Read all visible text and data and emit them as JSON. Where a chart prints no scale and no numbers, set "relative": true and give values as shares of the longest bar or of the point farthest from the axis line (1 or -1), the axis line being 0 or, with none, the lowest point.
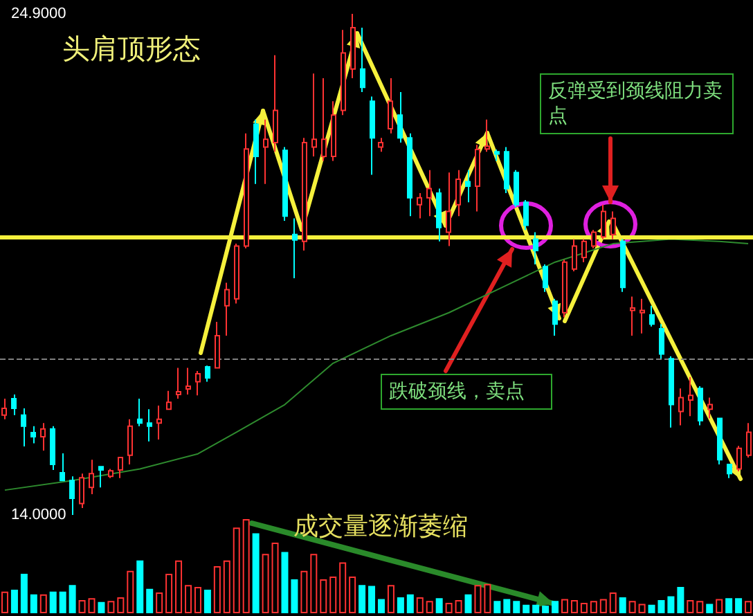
{
  "chart_data": [
    {
      "type": "candlestick",
      "title": "头肩顶形态",
      "categories": [
        null,
        null,
        null,
        null,
        null,
        null,
        null,
        null,
        null,
        null,
        null,
        null,
        null,
        null,
        null,
        null,
        null,
        null,
        null,
        null,
        null,
        null,
        null,
        null,
        null,
        null,
        null,
        null,
        null,
        null,
        null,
        null,
        null,
        null,
        null,
        null,
        null,
        null,
        null,
        null,
        null,
        null,
        null,
        null,
        null,
        null,
        null,
        null,
        null,
        null,
        null,
        null,
        null,
        null,
        null,
        null,
        null,
        null,
        null,
        null,
        null,
        null,
        null,
        null,
        null,
        null,
        null,
        null,
        null,
        null,
        null,
        null,
        null,
        null,
        null,
        null,
        null,
        null
      ],
      "ohlc": [
        [
          16.17,
          16.53,
          16.08,
          16.32
        ],
        [
          16.53,
          16.62,
          16.17,
          16.32
        ],
        [
          16.17,
          16.32,
          15.49,
          15.93
        ],
        [
          15.79,
          15.93,
          15.56,
          15.7
        ],
        [
          15.7,
          16.0,
          15.4,
          15.87
        ],
        [
          15.87,
          15.93,
          14.98,
          15.1
        ],
        [
          14.92,
          15.34,
          14.75,
          14.75
        ],
        [
          14.75,
          14.84,
          14.0,
          14.36
        ],
        [
          14.25,
          14.9,
          14.15,
          14.81
        ],
        [
          14.6,
          15.2,
          14.45,
          14.9
        ],
        [
          15.05,
          15.05,
          14.6,
          14.98
        ],
        [
          14.84,
          15.0,
          14.8,
          14.96
        ],
        [
          14.98,
          15.25,
          14.8,
          15.25
        ],
        [
          15.3,
          16.08,
          15.1,
          15.93
        ],
        [
          16.08,
          16.53,
          15.93,
          16.0
        ],
        [
          16.0,
          16.3,
          15.6,
          15.93
        ],
        [
          16.0,
          16.38,
          15.64,
          16.08
        ],
        [
          16.3,
          16.7,
          16.3,
          16.45
        ],
        [
          16.62,
          17.2,
          16.53,
          16.68
        ],
        [
          16.74,
          17.2,
          16.62,
          16.8
        ],
        [
          16.9,
          17.13,
          16.6,
          17.07
        ],
        [
          17.22,
          17.25,
          16.9,
          16.98
        ],
        [
          17.2,
          18.2,
          17.2,
          17.9
        ],
        [
          18.55,
          19.05,
          17.9,
          18.9
        ],
        [
          18.7,
          19.9,
          18.6,
          19.85
        ],
        [
          19.85,
          22.3,
          19.8,
          21.96
        ],
        [
          22.5,
          22.6,
          21.2,
          21.8
        ],
        [
          22.0,
          22.6,
          21.2,
          22.17
        ],
        [
          22.1,
          24.0,
          21.9,
          22.8
        ],
        [
          21.93,
          22.0,
          20.4,
          20.5
        ],
        [
          20.1,
          20.45,
          19.15,
          19.98
        ],
        [
          19.95,
          22.2,
          19.75,
          22.1
        ],
        [
          22.0,
          23.6,
          21.8,
          22.17
        ],
        [
          21.8,
          23.5,
          21.7,
          22.17
        ],
        [
          21.8,
          23.0,
          21.7,
          22.7
        ],
        [
          22.8,
          24.55,
          22.7,
          24.05
        ],
        [
          23.7,
          24.9,
          23.5,
          24.6
        ],
        [
          23.7,
          24.6,
          23.2,
          23.3
        ],
        [
          23.0,
          23.1,
          21.4,
          22.2
        ],
        [
          22.0,
          22.2,
          21.9,
          22.1
        ],
        [
          22.4,
          23.5,
          22.3,
          23.0
        ],
        [
          22.7,
          23.2,
          22.1,
          22.2
        ],
        [
          22.2,
          22.3,
          20.5,
          20.9
        ],
        [
          20.75,
          21.0,
          20.45,
          20.9
        ],
        [
          20.9,
          21.5,
          20.5,
          21.1
        ],
        [
          21.0,
          21.1,
          19.95,
          20.25
        ],
        [
          20.15,
          21.45,
          19.85,
          20.6
        ],
        [
          20.75,
          21.5,
          20.5,
          21.3
        ],
        [
          21.25,
          21.5,
          20.8,
          21.15
        ],
        [
          21.15,
          22.05,
          20.6,
          21.95
        ],
        [
          21.96,
          22.6,
          21.9,
          22.02
        ],
        [
          21.9,
          21.95,
          21.7,
          21.85
        ],
        [
          21.9,
          22.0,
          21.0,
          21.1
        ],
        [
          21.45,
          21.5,
          20.7,
          20.75
        ],
        [
          20.8,
          20.85,
          20.2,
          20.3
        ],
        [
          20.0,
          20.15,
          19.45,
          19.75
        ],
        [
          19.4,
          19.45,
          18.85,
          18.95
        ],
        [
          18.65,
          18.7,
          17.9,
          18.15
        ],
        [
          18.4,
          19.55,
          18.3,
          19.5
        ],
        [
          19.35,
          20.0,
          19.3,
          19.85
        ],
        [
          19.6,
          20.0,
          19.5,
          19.95
        ],
        [
          19.85,
          20.2,
          19.8,
          20.15
        ],
        [
          20.05,
          20.75,
          20.0,
          20.6
        ],
        [
          20.1,
          20.6,
          20.0,
          20.45
        ],
        [
          19.95,
          20.0,
          18.85,
          18.95
        ],
        [
          18.45,
          18.75,
          17.9,
          18.5
        ],
        [
          18.4,
          18.7,
          17.95,
          18.45
        ],
        [
          18.35,
          18.55,
          18.1,
          18.15
        ],
        [
          18.05,
          18.15,
          17.4,
          17.5
        ],
        [
          17.4,
          17.45,
          15.9,
          16.4
        ],
        [
          16.25,
          16.75,
          15.95,
          16.55
        ],
        [
          16.5,
          17.0,
          16.15,
          16.6
        ],
        [
          16.75,
          16.8,
          15.95,
          16.05
        ],
        [
          16.3,
          16.55,
          16.1,
          16.4
        ],
        [
          16.1,
          16.1,
          15.1,
          15.2
        ],
        [
          15.1,
          15.1,
          14.8,
          14.9
        ],
        [
          15.0,
          15.5,
          14.95,
          15.45
        ],
        [
          15.3,
          16.0,
          15.25,
          15.8
        ]
      ],
      "colors": [
        "#ff3232",
        "#00ffff",
        "#00ffff",
        "#00ffff",
        "#ff3232",
        "#00ffff",
        "#00ffff",
        "#00ffff",
        "#ff3232",
        "#ff3232",
        "#00ffff",
        "#ff3232",
        "#ff3232",
        "#ff3232",
        "#00ffff",
        "#00ffff",
        "#ff3232",
        "#ff3232",
        "#ff3232",
        "#ff3232",
        "#ff3232",
        "#00ffff",
        "#ff3232",
        "#ff3232",
        "#ff3232",
        "#ff3232",
        "#00ffff",
        "#ff3232",
        "#ff3232",
        "#00ffff",
        "#00ffff",
        "#ff3232",
        "#ff3232",
        "#ff3232",
        "#ff3232",
        "#ff3232",
        "#ff3232",
        "#00ffff",
        "#00ffff",
        "#ff3232",
        "#ff3232",
        "#00ffff",
        "#00ffff",
        "#ff3232",
        "#ff3232",
        "#00ffff",
        "#ff3232",
        "#ff3232",
        "#00ffff",
        "#ff3232",
        "#ff3232",
        "#00ffff",
        "#00ffff",
        "#00ffff",
        "#00ffff",
        "#00ffff",
        "#00ffff",
        "#00ffff",
        "#ff3232",
        "#ff3232",
        "#ff3232",
        "#ff3232",
        "#ff3232",
        "#ff3232",
        "#00ffff",
        "#ff3232",
        "#ff3232",
        "#00ffff",
        "#00ffff",
        "#00ffff",
        "#ff3232",
        "#ff3232",
        "#00ffff",
        "#ff3232",
        "#00ffff",
        "#00ffff",
        "#ff3232",
        "#ff3232"
      ],
      "series": [
        {
          "type": "line",
          "color": "#2e8b2e",
          "values": [
            14.54,
            null,
            null,
            null,
            null,
            null,
            null,
            14.75,
            null,
            null,
            null,
            null,
            null,
            null,
            15.0,
            null,
            null,
            null,
            null,
            null,
            15.33,
            null,
            null,
            null,
            15.8,
            null,
            null,
            null,
            null,
            16.4,
            null,
            null,
            null,
            null,
            17.3,
            null,
            null,
            null,
            null,
            null,
            17.9,
            null,
            null,
            null,
            null,
            null,
            18.4,
            null,
            null,
            null,
            null,
            18.9,
            null,
            null,
            null,
            null,
            null,
            19.5,
            null,
            null,
            null,
            null,
            null,
            19.9,
            null,
            null,
            null,
            null,
            null,
            20.0,
            null,
            null,
            null,
            null,
            19.95,
            null,
            null,
            19.9
          ]
        }
      ],
      "ylim": [
        14.0,
        24.9
      ],
      "yticks": [
        {
          "value": 14.0,
          "label": "14.0000"
        },
        {
          "value": 24.9,
          "label": "24.9000"
        }
      ],
      "ref_lines": [
        {
          "axis": "y",
          "value": 17.4,
          "color": "#808080",
          "line_style": "dashed"
        },
        {
          "axis": "y",
          "value": 20.05,
          "color": "#f5f03c",
          "line_style": "solid"
        }
      ],
      "annotations": [
        "反弹受到颈线阻力卖点",
        "跌破颈线，卖点"
      ]
    },
    {
      "type": "bar",
      "relative": true,
      "categories": [
        null,
        null,
        null,
        null,
        null,
        null,
        null,
        null,
        null,
        null,
        null,
        null,
        null,
        null,
        null,
        null,
        null,
        null,
        null,
        null,
        null,
        null,
        null,
        null,
        null,
        null,
        null,
        null,
        null,
        null,
        null,
        null,
        null,
        null,
        null,
        null,
        null,
        null,
        null,
        null,
        null,
        null,
        null,
        null,
        null,
        null,
        null,
        null,
        null,
        null,
        null,
        null,
        null,
        null,
        null,
        null,
        null,
        null,
        null,
        null,
        null,
        null,
        null,
        null,
        null,
        null,
        null,
        null,
        null,
        null,
        null,
        null,
        null,
        null,
        null,
        null,
        null,
        null
      ],
      "values": [
        0.23,
        0.25,
        0.42,
        0.2,
        0.2,
        0.23,
        0.23,
        0.3,
        0.14,
        0.16,
        0.12,
        0.13,
        0.17,
        0.45,
        0.56,
        0.26,
        0.22,
        0.42,
        0.56,
        0.3,
        0.28,
        0.25,
        0.5,
        0.56,
        0.91,
        1.0,
        0.85,
        0.63,
        0.75,
        0.65,
        0.36,
        0.45,
        0.63,
        0.36,
        0.39,
        0.54,
        0.39,
        0.3,
        0.29,
        0.15,
        0.3,
        0.17,
        0.2,
        0.17,
        0.13,
        0.16,
        0.11,
        0.14,
        0.2,
        0.3,
        0.31,
        0.13,
        0.15,
        0.13,
        0.09,
        0.09,
        0.08,
        0.13,
        0.15,
        0.14,
        0.11,
        0.13,
        0.15,
        0.22,
        0.17,
        0.13,
        0.1,
        0.09,
        0.14,
        0.18,
        0.28,
        0.14,
        0.13,
        0.1,
        0.15,
        0.16,
        0.16,
        0.13
      ],
      "colors": [
        "#ff3232",
        "#00ffff",
        "#00ffff",
        "#00ffff",
        "#ff3232",
        "#00ffff",
        "#00ffff",
        "#00ffff",
        "#ff3232",
        "#ff3232",
        "#00ffff",
        "#ff3232",
        "#ff3232",
        "#ff3232",
        "#00ffff",
        "#00ffff",
        "#ff3232",
        "#ff3232",
        "#ff3232",
        "#ff3232",
        "#ff3232",
        "#00ffff",
        "#ff3232",
        "#ff3232",
        "#ff3232",
        "#ff3232",
        "#00ffff",
        "#ff3232",
        "#ff3232",
        "#00ffff",
        "#00ffff",
        "#ff3232",
        "#ff3232",
        "#ff3232",
        "#ff3232",
        "#ff3232",
        "#ff3232",
        "#00ffff",
        "#00ffff",
        "#00ffff",
        "#ff3232",
        "#00ffff",
        "#00ffff",
        "#ff3232",
        "#ff3232",
        "#00ffff",
        "#ff3232",
        "#ff3232",
        "#00ffff",
        "#ff3232",
        "#ff3232",
        "#00ffff",
        "#00ffff",
        "#00ffff",
        "#00ffff",
        "#00ffff",
        "#00ffff",
        "#00ffff",
        "#ff3232",
        "#ff3232",
        "#ff3232",
        "#ff3232",
        "#ff3232",
        "#ff3232",
        "#00ffff",
        "#ff3232",
        "#ff3232",
        "#00ffff",
        "#00ffff",
        "#00ffff",
        "#00ffff",
        "#ff3232",
        "#ff3232",
        "#00ffff",
        "#ff3232",
        "#00ffff",
        "#00ffff",
        "#ff3232"
      ],
      "annotations": [
        "成交量逐渐萎缩"
      ]
    }
  ]
}
